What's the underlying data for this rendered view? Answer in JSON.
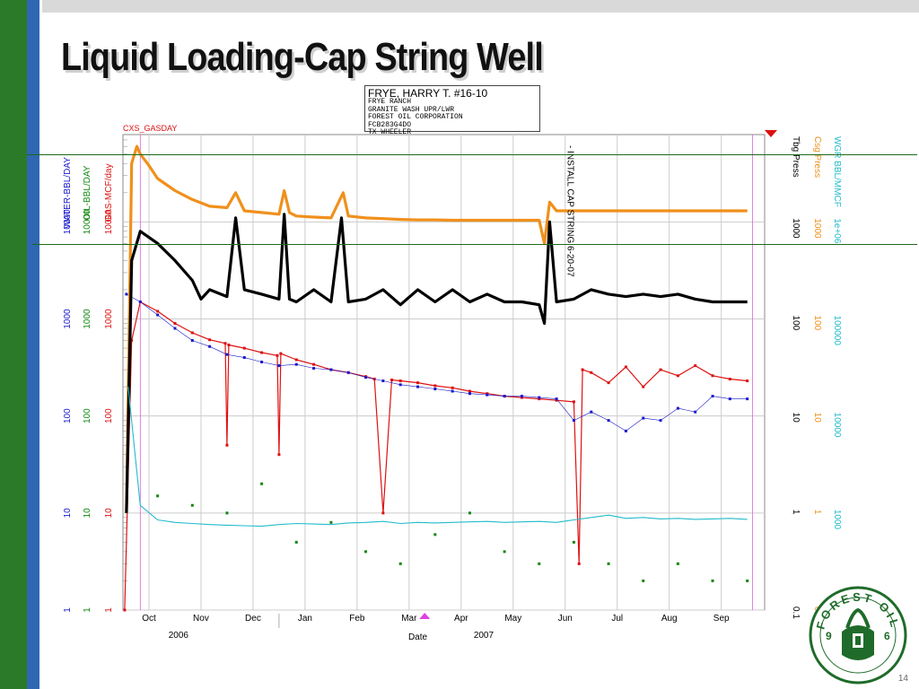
{
  "slide": {
    "title": "Liquid Loading-Cap String Well",
    "page_number": "14"
  },
  "well_info": {
    "title": "FRYE, HARRY T. #16-10",
    "lines": [
      "FRYE RANCH",
      "GRANITE WASH UPR/LWR",
      "FOREST OIL CORPORATION",
      "FCB283G4DO",
      "TX WHEELER"
    ]
  },
  "logo": {
    "text": "FOREST OIL",
    "year_left": "9",
    "year_right": "6"
  },
  "colors": {
    "water": "#1a1acc",
    "oil": "#118811",
    "gas": "#dd1111",
    "csg": "#f0901c",
    "tbg": "#000000",
    "wgr": "#22bbcc"
  },
  "chart_data": {
    "type": "line",
    "x_month_labels": [
      "Oct",
      "Nov",
      "Dec",
      "Jan",
      "Feb",
      "Mar",
      "Apr",
      "May",
      "Jun",
      "Jul",
      "Aug",
      "Sep"
    ],
    "x_year_labels": [
      "2006",
      "2007"
    ],
    "x_label": "Date",
    "left_axes": [
      {
        "label": "WATER-BBL/DAY",
        "ticks": [
          "10000",
          "1000",
          "100",
          "10",
          "1"
        ],
        "color": "#1a1acc"
      },
      {
        "label": "OIL-BBL/DAY",
        "ticks": [
          "10000",
          "1000",
          "100",
          "10",
          "1"
        ],
        "color": "#118811"
      },
      {
        "label": "GAS-MCF/day",
        "ticks": [
          "10000",
          "1000",
          "100",
          "10",
          "1"
        ],
        "color": "#dd1111"
      },
      {
        "label": "CXS_GASDAY",
        "ticks": [],
        "color": "#dd1111"
      }
    ],
    "right_axes": [
      {
        "label": "Tbg Press",
        "ticks": [
          "1000",
          "100",
          "10",
          "1",
          "0.1"
        ],
        "color": "#000000"
      },
      {
        "label": "Csg Press",
        "ticks": [
          "1000",
          "100",
          "10",
          "1",
          "0.1"
        ],
        "color": "#f0901c"
      },
      {
        "label": "WGR  BBL/MMCF",
        "ticks": [
          "1e+06",
          "100000",
          "10000",
          "1000",
          "100"
        ],
        "color": "#22bbcc"
      }
    ],
    "annotation": "INSTALL CAP STRING 6-20-07",
    "series": [
      {
        "name": "GAS-MCF/day",
        "color": "#dd1111",
        "style": "line+markers",
        "x": [
          0.1,
          0.5,
          1,
          2,
          3,
          4,
          5,
          5.9,
          6,
          6.1,
          7,
          8,
          8.9,
          9,
          9.1,
          10,
          11,
          12,
          13,
          14,
          14.5,
          15,
          15.5,
          16,
          17,
          18,
          19,
          20,
          21,
          22,
          23,
          24,
          25,
          26,
          26.3,
          26.5,
          27,
          28,
          29,
          30,
          31,
          32,
          33,
          34,
          35,
          36
        ],
        "values": [
          1,
          600,
          1500,
          1200,
          900,
          720,
          610,
          560,
          50,
          540,
          500,
          450,
          420,
          40,
          440,
          380,
          340,
          300,
          280,
          255,
          240,
          10,
          235,
          230,
          220,
          205,
          195,
          180,
          170,
          160,
          155,
          150,
          145,
          140,
          3,
          300,
          280,
          220,
          320,
          200,
          300,
          260,
          330,
          260,
          240,
          230
        ]
      },
      {
        "name": "WATER-BBL/DAY",
        "color": "#1a1acc",
        "style": "markers+thin-line",
        "x": [
          0.2,
          1,
          2,
          3,
          4,
          5,
          6,
          7,
          8,
          9,
          10,
          11,
          12,
          13,
          14,
          15,
          16,
          17,
          18,
          19,
          20,
          21,
          22,
          23,
          24,
          25,
          26,
          27,
          28,
          29,
          30,
          31,
          32,
          33,
          34,
          35,
          36
        ],
        "values": [
          1800,
          1500,
          1100,
          800,
          600,
          520,
          430,
          400,
          360,
          330,
          340,
          310,
          300,
          280,
          250,
          230,
          210,
          200,
          190,
          180,
          170,
          165,
          160,
          160,
          155,
          150,
          90,
          110,
          90,
          70,
          95,
          90,
          120,
          110,
          160,
          150,
          150
        ]
      },
      {
        "name": "OIL-BBL/DAY",
        "color": "#118811",
        "style": "scatter",
        "x": [
          2,
          4,
          6,
          8,
          10,
          12,
          14,
          16,
          18,
          20,
          22,
          24,
          26,
          28,
          30,
          32,
          34,
          36
        ],
        "values": [
          15,
          12,
          10,
          20,
          5,
          8,
          4,
          3,
          6,
          10,
          4,
          3,
          5,
          3,
          2,
          3,
          2,
          2
        ]
      },
      {
        "name": "Csg Press",
        "color": "#f0901c",
        "style": "thick-line",
        "x": [
          0.2,
          0.5,
          0.8,
          1,
          1.5,
          2,
          3,
          4,
          5,
          6,
          6.5,
          7,
          8,
          9,
          9.3,
          9.6,
          10,
          11,
          12,
          12.7,
          13,
          14,
          15,
          16,
          17,
          18,
          19,
          20,
          21,
          22,
          23,
          24,
          24.3,
          24.6,
          25,
          26,
          27,
          28,
          29,
          30,
          31,
          32,
          33,
          34,
          35,
          36
        ],
        "values": [
          1,
          4000,
          6000,
          5000,
          3800,
          2800,
          2100,
          1700,
          1450,
          1400,
          2000,
          1300,
          1250,
          1200,
          2100,
          1250,
          1150,
          1120,
          1100,
          2000,
          1150,
          1100,
          1080,
          1060,
          1050,
          1050,
          1040,
          1040,
          1040,
          1040,
          1040,
          1040,
          600,
          1600,
          1300,
          1300,
          1300,
          1300,
          1300,
          1300,
          1300,
          1300,
          1300,
          1300,
          1300,
          1300
        ]
      },
      {
        "name": "Tbg Press",
        "color": "#000000",
        "style": "thick-line",
        "x": [
          0.2,
          0.5,
          1,
          2,
          3,
          4,
          4.5,
          5,
          6,
          6.5,
          7,
          8,
          9,
          9.3,
          9.6,
          10,
          11,
          12,
          12.6,
          13,
          14,
          15,
          16,
          17,
          18,
          19,
          20,
          21,
          22,
          23,
          24,
          24.3,
          24.6,
          25,
          26,
          27,
          28,
          29,
          30,
          31,
          32,
          33,
          34,
          35,
          36
        ],
        "values": [
          1,
          400,
          800,
          600,
          400,
          250,
          160,
          200,
          170,
          1100,
          200,
          180,
          160,
          1200,
          160,
          150,
          200,
          150,
          1100,
          150,
          160,
          200,
          140,
          200,
          150,
          200,
          150,
          180,
          150,
          150,
          140,
          90,
          1000,
          150,
          160,
          200,
          180,
          170,
          180,
          170,
          180,
          160,
          150,
          150,
          150
        ]
      },
      {
        "name": "WGR  BBL/MMCF",
        "color": "#22bbcc",
        "style": "noisy-line",
        "x": [
          0.3,
          1,
          2,
          3,
          4,
          5,
          6,
          7,
          8,
          9,
          10,
          11,
          12,
          13,
          14,
          15,
          16,
          17,
          18,
          19,
          20,
          21,
          22,
          23,
          24,
          25,
          26,
          27,
          28,
          29,
          30,
          31,
          32,
          33,
          34,
          35,
          36
        ],
        "values": [
          20000,
          1200,
          850,
          800,
          780,
          760,
          750,
          740,
          730,
          760,
          780,
          770,
          760,
          790,
          800,
          820,
          780,
          800,
          790,
          800,
          810,
          820,
          800,
          810,
          820,
          800,
          850,
          900,
          950,
          880,
          900,
          870,
          880,
          860,
          870,
          880,
          860
        ]
      }
    ]
  }
}
